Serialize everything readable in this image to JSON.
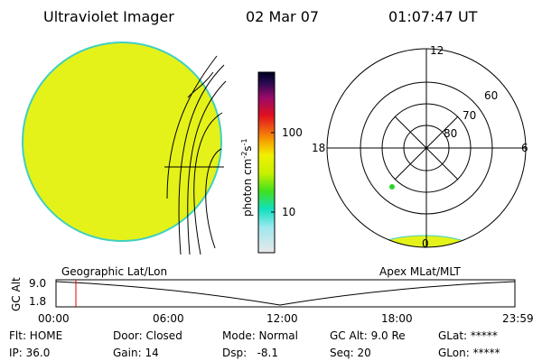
{
  "header": {
    "title": "Ultraviolet Imager",
    "date": "02 Mar 07",
    "time": "01:07:47 UT"
  },
  "colorbar": {
    "label_parts": [
      "photon cm",
      "-2",
      "s",
      "-1"
    ],
    "ticks": [
      "100",
      "10"
    ]
  },
  "polar": {
    "labels": {
      "top": "12",
      "left": "18",
      "right": "6",
      "bottom": "0"
    },
    "rings": [
      "60",
      "70",
      "80"
    ]
  },
  "timeline": {
    "left_title": "Geographic Lat/Lon",
    "right_title": "Apex MLat/MLT",
    "y_label": "GC Alt",
    "y_ticks": [
      "9.0",
      "1.8"
    ],
    "x_ticks": [
      "00:00",
      "06:00",
      "12:00",
      "18:00",
      "23:59"
    ]
  },
  "info": {
    "row1": [
      "Flt: HOME",
      "Door: Closed",
      "Mode: Normal",
      "GC Alt: 9.0 Re",
      "GLat: *****"
    ],
    "row2": [
      "IP: 36.0",
      "Gain: 14",
      "Dsp:   -8.1",
      "Seq: 20",
      "GLon: *****"
    ]
  }
}
